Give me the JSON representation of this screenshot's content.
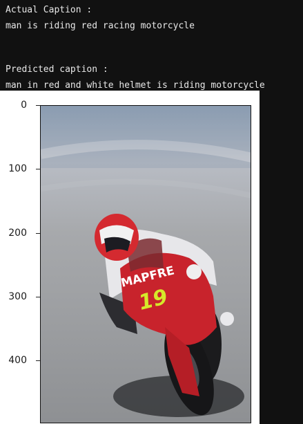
{
  "console": {
    "actual_heading": "Actual Caption :",
    "actual_caption": "man is riding red racing motorcycle",
    "predicted_heading": "Predicted caption :",
    "predicted_caption": "man in red and white helmet is riding motorcycle"
  },
  "plot": {
    "y_ticks": [
      "0",
      "100",
      "200",
      "300",
      "400"
    ],
    "bike_number": "19",
    "bike_brand": "MAPFRE"
  },
  "colors": {
    "background": "#111111",
    "bike_red": "#c8232c",
    "number_yellow": "#d6e82a"
  }
}
